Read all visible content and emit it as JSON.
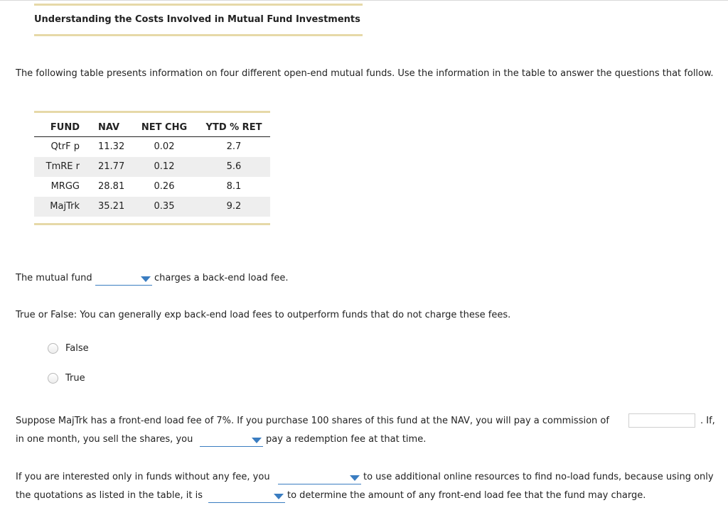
{
  "header": {
    "title": "Understanding the Costs Involved in Mutual Fund Investments"
  },
  "intro": "The following table presents information on four different open-end mutual funds. Use the information in the table to answer the questions that follow.",
  "table": {
    "headers": [
      "FUND",
      "NAV",
      "NET CHG",
      "YTD % RET"
    ],
    "rows": [
      [
        "QtrF p",
        "11.32",
        "0.02",
        "2.7"
      ],
      [
        "TmRE r",
        "21.77",
        "0.12",
        "5.6"
      ],
      [
        "MRGG",
        "28.81",
        "0.26",
        "8.1"
      ],
      [
        "MajTrk",
        "35.21",
        "0.35",
        "9.2"
      ]
    ]
  },
  "q1": {
    "before": "The mutual fund",
    "after": "charges a back-end load fee.",
    "selected": ""
  },
  "q2": {
    "prompt": "True or False: You can generally exp back-end load fees to outperform funds that do not charge these fees.",
    "options": [
      "False",
      "True"
    ]
  },
  "q3": {
    "line1_before": "Suppose MajTrk has a front-end load fee of 7%. If you purchase 100 shares of this fund at the NAV, you will pay a commission of",
    "commission_value": "",
    "line1_after": ". If,",
    "line2_before": "in one month, you sell the shares, you",
    "line2_after": "pay a redemption fee at that time."
  },
  "q4": {
    "line1_before": "If you are interested only in funds without any fee, you",
    "line1_after": "to use additional online resources to find no-load funds, because using only",
    "line2_before": "the quotations as listed in the table, it is",
    "line2_after": "to determine the amount of any front-end load fee that the fund may charge."
  },
  "colors": {
    "accent_bar": "#e6d9a8",
    "dropdown": "#3a7dc1",
    "row_shade": "#eeeeee"
  }
}
